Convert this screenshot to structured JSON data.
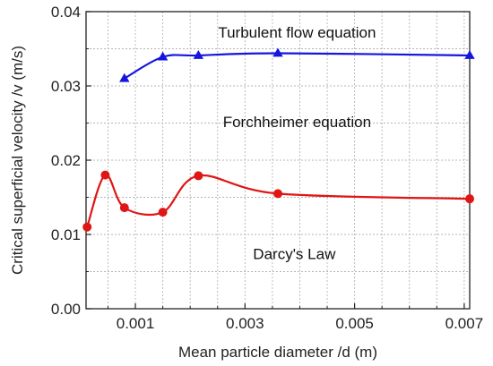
{
  "chart_data": {
    "type": "line",
    "xlabel": "Mean particle diameter /d (m)",
    "ylabel": "Critical superficial velocity /v (m/s)",
    "xlim": [
      0.0001,
      0.0071
    ],
    "ylim": [
      0.0,
      0.04
    ],
    "xticks": [
      0.001,
      0.003,
      0.005,
      0.007
    ],
    "xtick_labels": [
      "0.001",
      "0.003",
      "0.005",
      "0.007"
    ],
    "yticks": [
      0.0,
      0.01,
      0.02,
      0.03,
      0.04
    ],
    "ytick_labels": [
      "0.00",
      "0.01",
      "0.02",
      "0.03",
      "0.04"
    ],
    "grid": true,
    "series": [
      {
        "color": "#1515e0",
        "marker": "triangle",
        "x": [
          0.0008,
          0.0015,
          0.00215,
          0.0036,
          0.0071
        ],
        "y": [
          0.031,
          0.0339,
          0.0341,
          0.0344,
          0.0341
        ]
      },
      {
        "color": "#e01515",
        "marker": "circle",
        "x": [
          0.00012,
          0.00045,
          0.0008,
          0.0015,
          0.00215,
          0.0036,
          0.0071
        ],
        "y": [
          0.011,
          0.018,
          0.0136,
          0.013,
          0.0179,
          0.0155,
          0.0148
        ]
      }
    ],
    "annotations": [
      {
        "text": "Turbulent flow equation",
        "x": 0.00395,
        "y": 0.0372
      },
      {
        "text": "Forchheimer equation",
        "x": 0.00395,
        "y": 0.0252
      },
      {
        "text": "Darcy's Law",
        "x": 0.0039,
        "y": 0.0074
      }
    ]
  }
}
